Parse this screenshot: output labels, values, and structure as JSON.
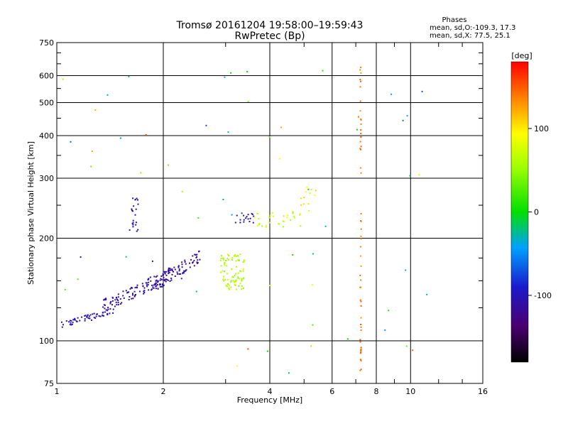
{
  "chart_data": {
    "type": "scatter",
    "title": "Tromsø 20161204 19:58:00–19:59:43",
    "subtitle": "RwPretec (Bp)",
    "xlabel": "Frequency [MHz]",
    "ylabel": "Stationary phase Virtual Height [km]",
    "x_scale": "log2",
    "y_scale": "log",
    "xlim": [
      1,
      16
    ],
    "ylim": [
      75,
      750
    ],
    "x_ticks": [
      "1",
      "2",
      "4",
      "6",
      "8",
      "10",
      "16"
    ],
    "x_tick_values": [
      1,
      2,
      4,
      6,
      8,
      10,
      16
    ],
    "y_ticks": [
      "75",
      "100",
      "200",
      "300",
      "400",
      "500",
      "600",
      "750"
    ],
    "y_tick_values": [
      75,
      100,
      200,
      300,
      400,
      500,
      600,
      750
    ],
    "grid": true,
    "colorbar": {
      "label": "[deg]",
      "range": [
        -180,
        180
      ],
      "ticks": [
        "100",
        "0",
        "-100"
      ],
      "tick_values": [
        100,
        0,
        -100
      ]
    },
    "legend_text": {
      "heading": "Phases",
      "line1": "mean, sd,O:-109.3, 17.3",
      "line2": "mean, sd,X:  77.5, 25.1"
    },
    "point_groups": [
      {
        "name": "O-mode F-trace (low)",
        "f": [
          1.0,
          1.45
        ],
        "h": [
          108,
          125
        ],
        "n": 55,
        "phase": -105,
        "sd": 15
      },
      {
        "name": "O-mode F-trace (mid)",
        "f": [
          1.35,
          2.1
        ],
        "h": [
          120,
          165
        ],
        "n": 130,
        "phase": -110,
        "sd": 15
      },
      {
        "name": "O-mode F-trace (high)",
        "f": [
          1.9,
          2.55
        ],
        "h": [
          140,
          185
        ],
        "n": 75,
        "phase": -112,
        "sd": 15
      },
      {
        "name": "O-mode upper cluster",
        "f": [
          1.6,
          1.7
        ],
        "h": [
          205,
          270
        ],
        "n": 22,
        "phase": -108,
        "sd": 12
      },
      {
        "name": "O-mode spread",
        "f": [
          3.2,
          3.6
        ],
        "h": [
          222,
          240
        ],
        "n": 18,
        "phase": -105,
        "sd": 18
      },
      {
        "name": "X-mode cluster",
        "f": [
          2.9,
          3.4
        ],
        "h": [
          140,
          180
        ],
        "n": 85,
        "phase": 60,
        "sd": 12
      },
      {
        "name": "X-mode F2 trace",
        "f": [
          3.6,
          4.9
        ],
        "h": [
          215,
          240
        ],
        "n": 30,
        "phase": 70,
        "sd": 20
      },
      {
        "name": "X-mode high",
        "f": [
          4.9,
          5.4
        ],
        "h": [
          240,
          290
        ],
        "n": 12,
        "phase": 95,
        "sd": 20
      },
      {
        "name": "Vertical streak 7.2 MHz",
        "f": [
          7.2,
          7.25
        ],
        "h": [
          80,
          640
        ],
        "n": 55,
        "phase": 140,
        "sd": 12
      },
      {
        "name": "Scattered points",
        "f": [
          1.0,
          12.0
        ],
        "h": [
          80,
          640
        ],
        "n": 60,
        "phase": 0,
        "sd": 120
      }
    ]
  }
}
